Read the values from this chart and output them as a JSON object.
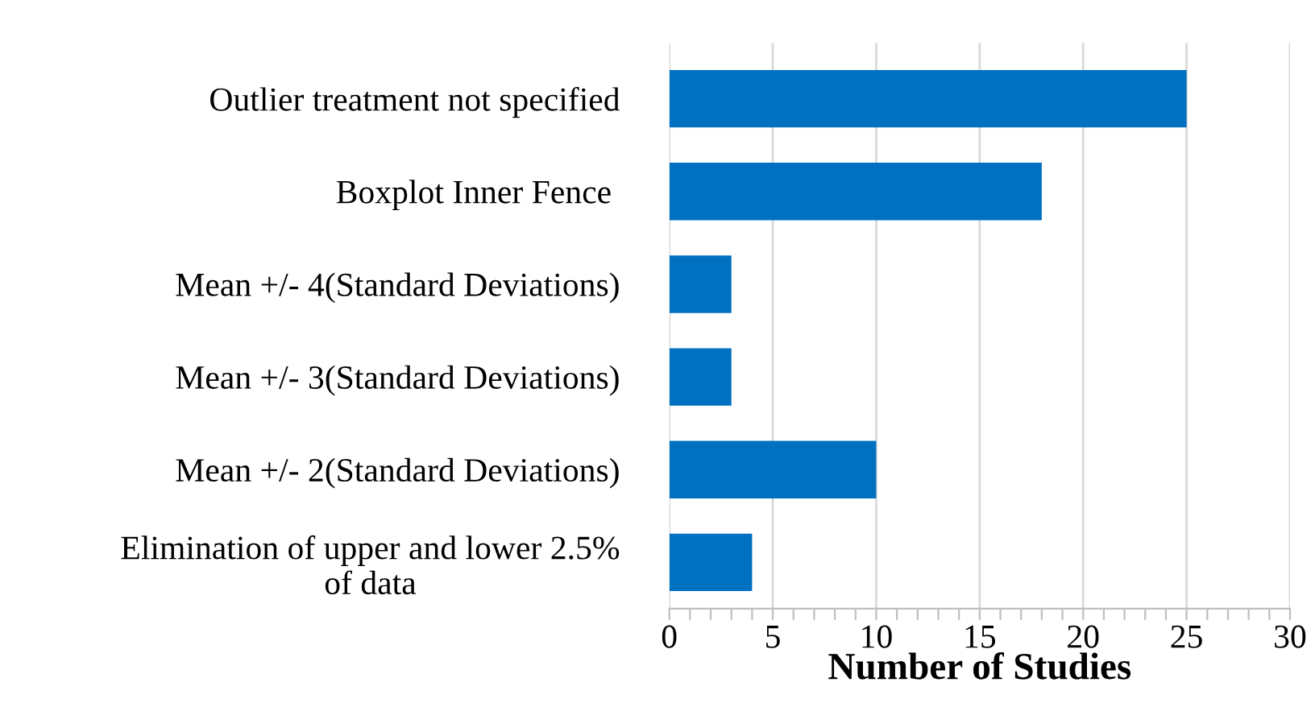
{
  "chart_data": {
    "type": "bar",
    "orientation": "horizontal",
    "xlabel": "Number of Studies",
    "categories": [
      "Outlier treatment not specified",
      "Boxplot Inner Fence ",
      "Mean +/- 4(Standard Deviations)",
      "Mean +/- 3(Standard Deviations)",
      "Mean +/- 2(Standard Deviations)",
      "Elimination of upper and lower 2.5%\nof data"
    ],
    "values": [
      25,
      18,
      3,
      3,
      10,
      4
    ],
    "color": "#0070c0",
    "xlim": [
      0,
      30
    ],
    "xticks": [
      0,
      {
        "value": 1,
        "label": null
      },
      {
        "value": 2,
        "label": null
      },
      {
        "value": 3,
        "label": null
      },
      {
        "value": 4,
        "label": null
      },
      5,
      {
        "value": 6,
        "label": null
      },
      {
        "value": 7,
        "label": null
      },
      {
        "value": 8,
        "label": null
      },
      {
        "value": 9,
        "label": null
      },
      10,
      {
        "value": 11,
        "label": null
      },
      {
        "value": 12,
        "label": null
      },
      {
        "value": 13,
        "label": null
      },
      {
        "value": 14,
        "label": null
      },
      15,
      {
        "value": 16,
        "label": null
      },
      {
        "value": 17,
        "label": null
      },
      {
        "value": 18,
        "label": null
      },
      {
        "value": 19,
        "label": null
      },
      20,
      {
        "value": 21,
        "label": null
      },
      {
        "value": 22,
        "label": null
      },
      {
        "value": 23,
        "label": null
      },
      {
        "value": 24,
        "label": null
      },
      25,
      {
        "value": 26,
        "label": null
      },
      {
        "value": 27,
        "label": null
      },
      {
        "value": 28,
        "label": null
      },
      {
        "value": 29,
        "label": null
      },
      30
    ],
    "grid": "x",
    "legend": false
  }
}
